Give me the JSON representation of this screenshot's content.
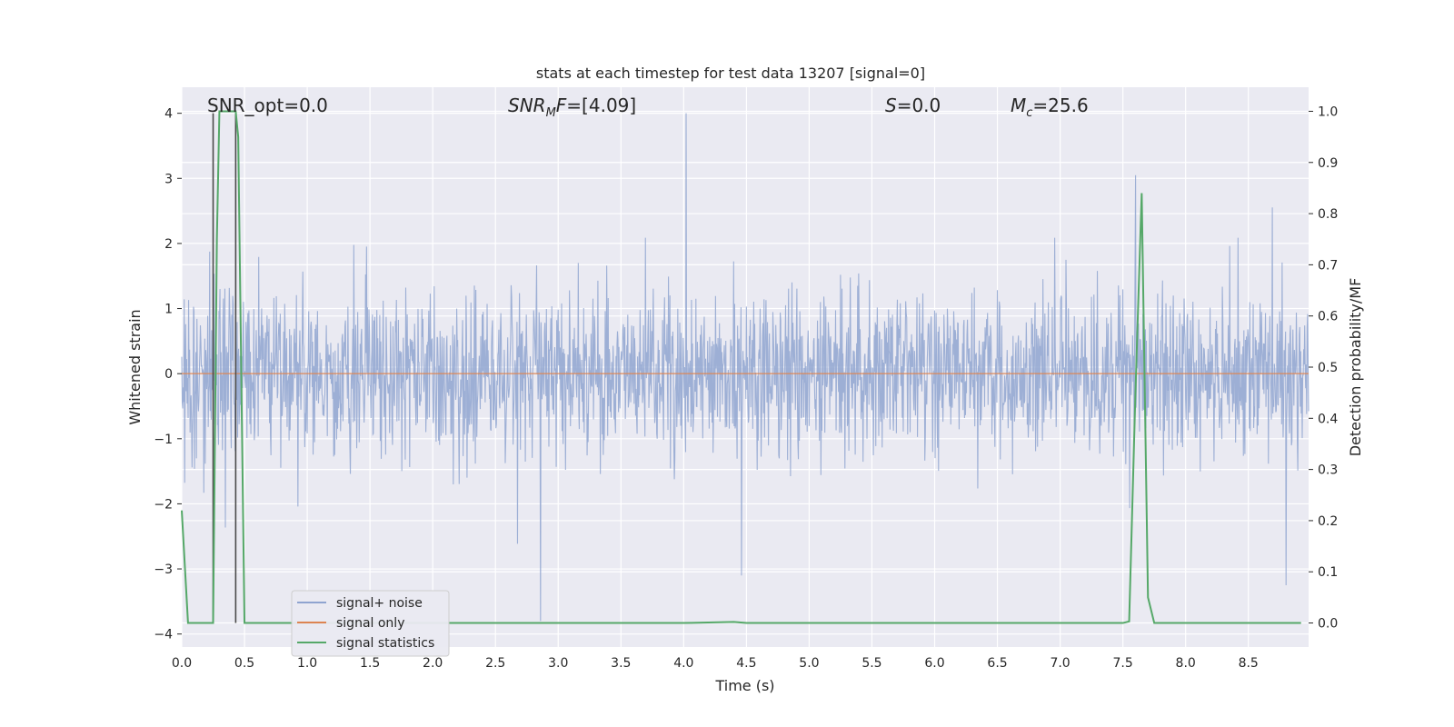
{
  "chart_data": {
    "type": "line",
    "title": "stats at each timestep for test data 13207 [signal=0]",
    "xlabel": "Time (s)",
    "ylabel": "Whitened strain",
    "ylabel_right": "Detection probability/MF",
    "xlim": [
      0.0,
      8.98
    ],
    "ylim": [
      -4.2,
      4.4
    ],
    "ylim_right": [
      -0.047,
      1.047
    ],
    "xticks": [
      "0.0",
      "0.5",
      "1.0",
      "1.5",
      "2.0",
      "2.5",
      "3.0",
      "3.5",
      "4.0",
      "4.5",
      "5.0",
      "5.5",
      "6.0",
      "6.5",
      "7.0",
      "7.5",
      "8.0",
      "8.5"
    ],
    "yticks": [
      "4",
      "3",
      "2",
      "1",
      "0",
      "−1",
      "−2",
      "−3",
      "−4"
    ],
    "yticks_right": [
      "1.0",
      "0.9",
      "0.8",
      "0.7",
      "0.6",
      "0.5",
      "0.4",
      "0.3",
      "0.2",
      "0.1",
      "0.0"
    ],
    "grid": true,
    "annotations": {
      "snr_opt": "SNR_opt=0.0",
      "snr_mf_italic": "SNR",
      "snr_mf_sub": "M",
      "snr_mf_italic2": "F",
      "snr_mf_value": "=[4.09]",
      "s_italic": "S",
      "s_value": "=0.0",
      "mc_italic": "M",
      "mc_sub": "c",
      "mc_value": "=25.6"
    },
    "legend": {
      "placement": "lower-left",
      "entries": [
        {
          "label": "signal+ noise",
          "color": "#8fa4d0"
        },
        {
          "label": "signal only",
          "color": "#dd8452"
        },
        {
          "label": "signal statistics",
          "color": "#55a868"
        }
      ]
    },
    "series": [
      {
        "name": "signal+ noise",
        "description": "whitened strain noise, roughly gaussian, amplitude ~±1.5 with spikes up to 4.0",
        "seed": 13207,
        "std": 0.62,
        "notable_peaks": [
          {
            "x": 4.02,
            "y": 4.0
          },
          {
            "x": 2.86,
            "y": -3.8
          },
          {
            "x": 7.6,
            "y": 3.05
          },
          {
            "x": 8.8,
            "y": -3.25
          },
          {
            "x": 4.46,
            "y": -3.1
          }
        ]
      },
      {
        "name": "signal only",
        "values_constant": 0.0
      },
      {
        "name": "signal statistics",
        "axis": "right",
        "x": [
          0.0,
          0.05,
          0.12,
          0.2,
          0.25,
          0.28,
          0.3,
          0.35,
          0.4,
          0.43,
          0.45,
          0.5,
          0.55,
          1.0,
          2.0,
          3.0,
          4.0,
          4.4,
          4.5,
          5.0,
          6.0,
          7.0,
          7.5,
          7.55,
          7.6,
          7.65,
          7.7,
          7.75,
          8.0,
          8.5,
          8.92
        ],
        "y": [
          0.22,
          0.0,
          0.0,
          0.0,
          0.0,
          0.75,
          1.0,
          1.0,
          1.0,
          1.0,
          0.95,
          0.0,
          0.0,
          0.0,
          0.0,
          0.0,
          0.0,
          0.002,
          0.0,
          0.0,
          0.0,
          0.0,
          0.0,
          0.003,
          0.45,
          0.84,
          0.05,
          0.0,
          0.0,
          0.0,
          0.0
        ]
      },
      {
        "name": "mf indicator",
        "description": "dark vertical marker lines",
        "x_positions": [
          0.25,
          0.43
        ]
      }
    ]
  }
}
